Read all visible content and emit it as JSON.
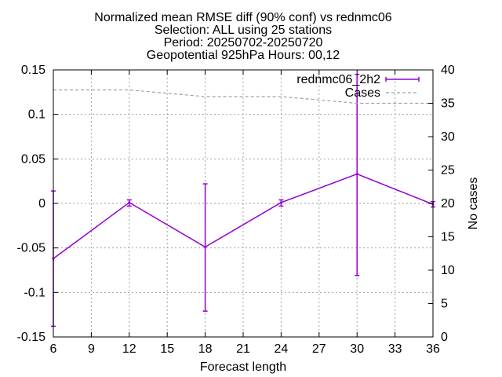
{
  "chart_data": {
    "type": "line",
    "title_lines": [
      "Normalized mean RMSE diff (90% conf) vs rednmc06",
      "Selection: ALL using    25 stations",
      "Period: 20250702-20250720",
      "Geopotential 925hPa   Hours: 00,12"
    ],
    "xlabel": "Forecast length",
    "ylabel": "",
    "y2label": "No cases",
    "xlim": [
      6,
      36
    ],
    "ylim": [
      -0.15,
      0.15
    ],
    "y2lim": [
      0,
      40
    ],
    "xticks": [
      6,
      9,
      12,
      15,
      18,
      21,
      24,
      27,
      30,
      33,
      36
    ],
    "yticks": [
      -0.15,
      -0.1,
      -0.05,
      0,
      0.05,
      0.1,
      0.15
    ],
    "ytick_labels": [
      "-0.15",
      "-0.1",
      "-0.05",
      "0",
      "0.05",
      "0.1",
      "0.15"
    ],
    "y2ticks": [
      0,
      5,
      10,
      15,
      20,
      25,
      30,
      35,
      40
    ],
    "grid": true,
    "legend_position": "top-right",
    "series": [
      {
        "name": "rednmc06_2h2",
        "axis": "y",
        "color": "#9400d3",
        "style": "line-errorbars",
        "x": [
          6,
          12,
          18,
          24,
          30,
          36
        ],
        "y": [
          -0.062,
          0.001,
          -0.049,
          0.001,
          0.033,
          -0.001
        ],
        "err_low": [
          -0.138,
          -0.003,
          -0.121,
          -0.003,
          -0.081,
          -0.004
        ],
        "err_high": [
          0.014,
          0.004,
          0.022,
          0.004,
          0.145,
          0.002
        ]
      },
      {
        "name": "Cases",
        "axis": "y2",
        "color": "#a0a0a0",
        "style": "dashed",
        "x": [
          6,
          12,
          18,
          24,
          30,
          36
        ],
        "y": [
          37,
          37,
          36,
          36,
          35,
          35
        ]
      }
    ]
  }
}
